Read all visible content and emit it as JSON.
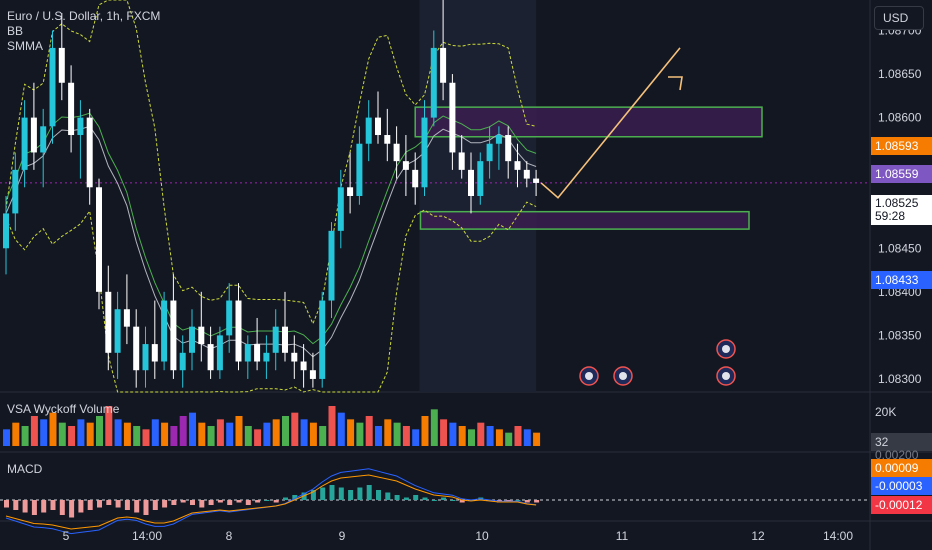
{
  "legend": {
    "symbol": "Euro / U.S. Dollar, 1h, FXCM",
    "ind1": "BB",
    "ind2": "SMMA"
  },
  "currency_button": "USD",
  "volume_pane": {
    "label": "VSA Wyckoff Volume",
    "scale_label": "20K",
    "value_tag": "32"
  },
  "macd_pane": {
    "label": "MACD",
    "scale_label": "0.00200",
    "tags": [
      "0.00009",
      "-0.00003",
      "-0.00012"
    ]
  },
  "price_tags": {
    "orange": "1.08593",
    "purple": "1.08559",
    "current": "1.08525",
    "countdown": "59:28",
    "blue": "1.08433"
  },
  "colors": {
    "background": "#131722",
    "up": "#26c6da",
    "down": "#ffffff",
    "box_border": "#4caf50",
    "box_fill": "#3a1f4f",
    "projection": "#f5c07a",
    "orange_tag": "#f57c00",
    "purple_tag": "#7e57c2",
    "blue_tag": "#2962ff",
    "red_tag": "#f23645"
  },
  "chart_data": {
    "type": "candlestick",
    "price_axis": {
      "ticks": [
        "1.08700",
        "1.08650",
        "1.08600",
        "1.08450",
        "1.08400",
        "1.08350",
        "1.08300"
      ],
      "range": [
        1.08285,
        1.08735
      ]
    },
    "time_axis": {
      "ticks": [
        "5",
        "14:00",
        "8",
        "9",
        "10",
        "11",
        "12",
        "14:00"
      ]
    },
    "ohlc": [
      [
        1.0845,
        1.0851,
        1.0842,
        1.0849
      ],
      [
        1.0849,
        1.0856,
        1.0847,
        1.0854
      ],
      [
        1.0854,
        1.0862,
        1.0852,
        1.086
      ],
      [
        1.086,
        1.0864,
        1.0854,
        1.0856
      ],
      [
        1.0856,
        1.0861,
        1.0852,
        1.0859
      ],
      [
        1.0859,
        1.087,
        1.0857,
        1.0868
      ],
      [
        1.0868,
        1.0872,
        1.0862,
        1.0864
      ],
      [
        1.0864,
        1.0866,
        1.0856,
        1.0858
      ],
      [
        1.0858,
        1.0862,
        1.0853,
        1.086
      ],
      [
        1.086,
        1.0861,
        1.085,
        1.0852
      ],
      [
        1.0852,
        1.0853,
        1.0838,
        1.084
      ],
      [
        1.084,
        1.0843,
        1.0831,
        1.0833
      ],
      [
        1.0833,
        1.084,
        1.083,
        1.0838
      ],
      [
        1.0838,
        1.0842,
        1.0834,
        1.0836
      ],
      [
        1.0836,
        1.0838,
        1.0829,
        1.0831
      ],
      [
        1.0831,
        1.0836,
        1.0829,
        1.0834
      ],
      [
        1.0834,
        1.0839,
        1.083,
        1.0832
      ],
      [
        1.0832,
        1.084,
        1.0831,
        1.0839
      ],
      [
        1.0839,
        1.0842,
        1.083,
        1.0831
      ],
      [
        1.0831,
        1.0835,
        1.0829,
        1.0833
      ],
      [
        1.0833,
        1.0838,
        1.0831,
        1.0836
      ],
      [
        1.0836,
        1.084,
        1.0832,
        1.0834
      ],
      [
        1.0834,
        1.0836,
        1.083,
        1.0831
      ],
      [
        1.0831,
        1.0836,
        1.083,
        1.0835
      ],
      [
        1.0835,
        1.0841,
        1.0833,
        1.0839
      ],
      [
        1.0839,
        1.0841,
        1.0831,
        1.0832
      ],
      [
        1.0832,
        1.0835,
        1.083,
        1.0834
      ],
      [
        1.0834,
        1.0837,
        1.0831,
        1.0832
      ],
      [
        1.0832,
        1.0835,
        1.083,
        1.0833
      ],
      [
        1.0833,
        1.0838,
        1.0831,
        1.0836
      ],
      [
        1.0836,
        1.084,
        1.0832,
        1.0833
      ],
      [
        1.0833,
        1.0835,
        1.083,
        1.0832
      ],
      [
        1.0832,
        1.0834,
        1.0829,
        1.0831
      ],
      [
        1.0831,
        1.0833,
        1.0829,
        1.083
      ],
      [
        1.083,
        1.084,
        1.0829,
        1.0839
      ],
      [
        1.0839,
        1.0848,
        1.0837,
        1.0847
      ],
      [
        1.0847,
        1.0854,
        1.0845,
        1.0852
      ],
      [
        1.0852,
        1.0856,
        1.0849,
        1.0851
      ],
      [
        1.0851,
        1.0859,
        1.085,
        1.0857
      ],
      [
        1.0857,
        1.0862,
        1.0855,
        1.086
      ],
      [
        1.086,
        1.0863,
        1.0857,
        1.0858
      ],
      [
        1.0858,
        1.0861,
        1.0855,
        1.0857
      ],
      [
        1.0857,
        1.0859,
        1.0853,
        1.0855
      ],
      [
        1.0855,
        1.0858,
        1.0851,
        1.0854
      ],
      [
        1.0854,
        1.0856,
        1.085,
        1.0852
      ],
      [
        1.0852,
        1.0862,
        1.0851,
        1.086
      ],
      [
        1.086,
        1.087,
        1.0859,
        1.0868
      ],
      [
        1.0868,
        1.08735,
        1.0862,
        1.0864
      ],
      [
        1.0864,
        1.0865,
        1.0854,
        1.0856
      ],
      [
        1.0856,
        1.0858,
        1.0853,
        1.0854
      ],
      [
        1.0854,
        1.0856,
        1.0849,
        1.0851
      ],
      [
        1.0851,
        1.0856,
        1.085,
        1.0855
      ],
      [
        1.0855,
        1.0859,
        1.0853,
        1.0857
      ],
      [
        1.0857,
        1.0859,
        1.0854,
        1.0858
      ],
      [
        1.0858,
        1.0859,
        1.0853,
        1.0855
      ],
      [
        1.0855,
        1.0857,
        1.0852,
        1.0854
      ],
      [
        1.0854,
        1.0855,
        1.0852,
        1.0853
      ],
      [
        1.0853,
        1.0854,
        1.0851,
        1.08525
      ]
    ],
    "zones": [
      {
        "from": 1.08578,
        "to": 1.08612
      },
      {
        "from": 1.08472,
        "to": 1.08492
      }
    ],
    "projection": [
      [
        1.08525,
        1.08508
      ],
      [
        1.08508,
        1.0868
      ]
    ],
    "volume": [
      5,
      7,
      6,
      9,
      8,
      10,
      7,
      6,
      8,
      7,
      9,
      12,
      8,
      7,
      6,
      5,
      8,
      7,
      6,
      9,
      10,
      7,
      6,
      8,
      7,
      9,
      6,
      5,
      7,
      8,
      9,
      10,
      8,
      7,
      6,
      12,
      10,
      8,
      7,
      9,
      6,
      8,
      7,
      6,
      5,
      9,
      11,
      8,
      7,
      6,
      5,
      7,
      6,
      5,
      4,
      6,
      5,
      4
    ],
    "macd_hist": [
      -3,
      -4,
      -5,
      -6,
      -5,
      -4,
      -6,
      -7,
      -5,
      -4,
      -3,
      -2,
      -3,
      -4,
      -5,
      -6,
      -4,
      -3,
      -2,
      -1,
      -2,
      -3,
      -2,
      -1,
      -2,
      -1,
      -2,
      -1,
      0,
      -1,
      1,
      2,
      3,
      4,
      5,
      6,
      5,
      4,
      5,
      6,
      4,
      3,
      2,
      1,
      2,
      1,
      0,
      1,
      0,
      -1,
      0,
      1,
      0,
      -1,
      -1,
      0,
      -1,
      -1
    ]
  }
}
